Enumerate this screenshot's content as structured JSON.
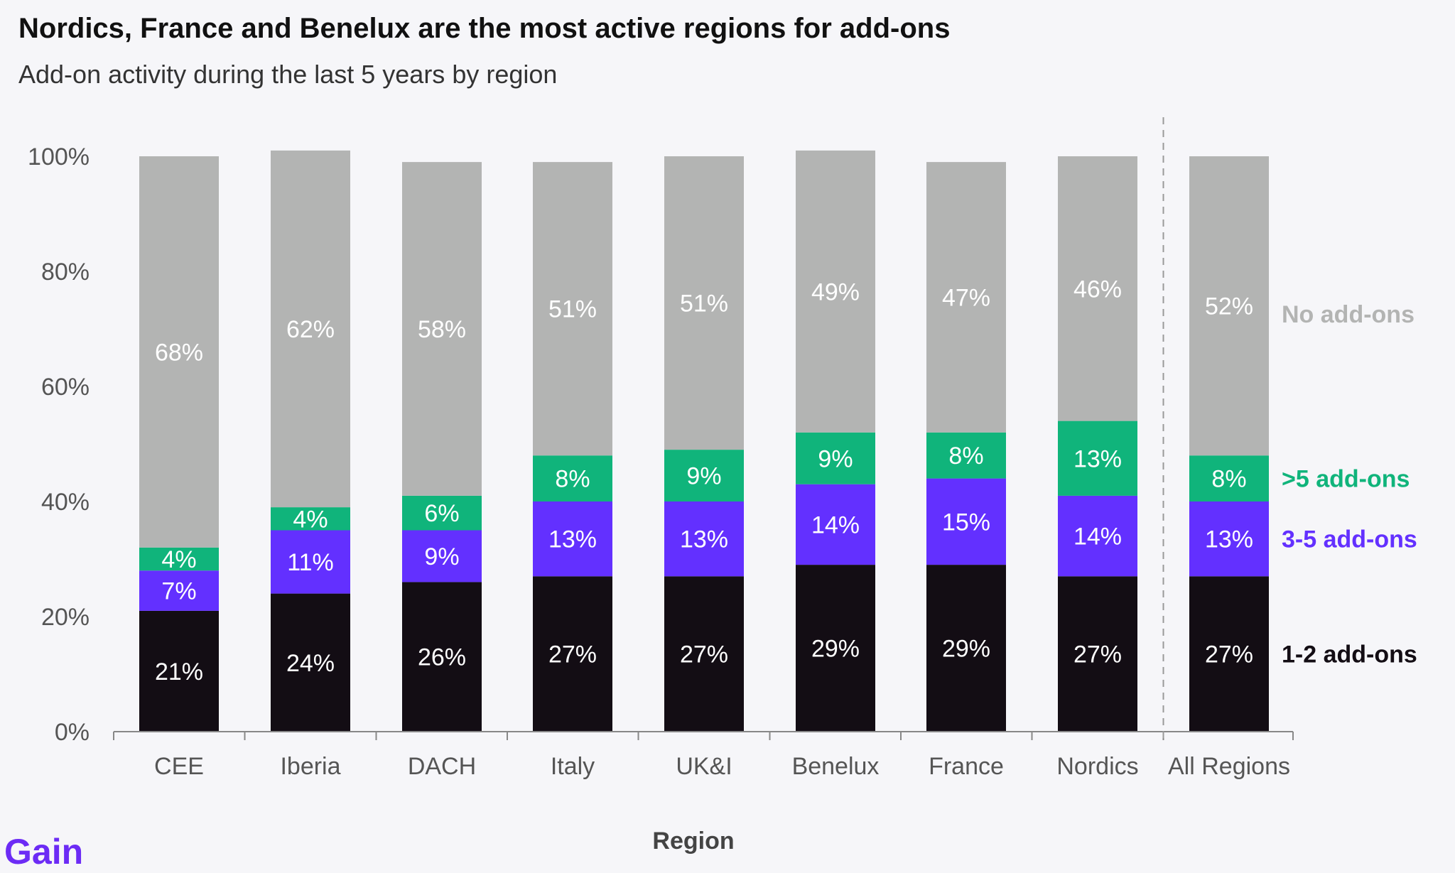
{
  "title": "Nordics, France and Benelux are the most active regions for add-ons",
  "subtitle": "Add-on activity during the last 5 years by region",
  "brand": "Gain",
  "chart_data": {
    "type": "bar",
    "stacked": true,
    "xlabel": "Region",
    "ylabel": "",
    "ylim": [
      0,
      100
    ],
    "yticks": [
      "0%",
      "20%",
      "40%",
      "60%",
      "80%",
      "100%"
    ],
    "categories": [
      "CEE",
      "Iberia",
      "DACH",
      "Italy",
      "UK&I",
      "Benelux",
      "France",
      "Nordics",
      "All Regions"
    ],
    "separator_before": "All Regions",
    "legend_placement": "right",
    "grid": false,
    "series": [
      {
        "name": "1-2 add-ons",
        "color": "#130d14",
        "values": [
          21,
          24,
          26,
          27,
          27,
          29,
          29,
          27,
          27
        ],
        "labels": [
          "21%",
          "24%",
          "26%",
          "27%",
          "27%",
          "29%",
          "29%",
          "27%",
          "27%"
        ]
      },
      {
        "name": "3-5 add-ons",
        "color": "#6330ff",
        "values": [
          7,
          11,
          9,
          13,
          13,
          14,
          15,
          14,
          13
        ],
        "labels": [
          "7%",
          "11%",
          "9%",
          "13%",
          "13%",
          "14%",
          "15%",
          "14%",
          "13%"
        ]
      },
      {
        "name": ">5 add-ons",
        "color": "#10b47b",
        "values": [
          4,
          4,
          6,
          8,
          9,
          9,
          8,
          13,
          8
        ],
        "labels": [
          "4%",
          "4%",
          "6%",
          "8%",
          "9%",
          "9%",
          "8%",
          "13%",
          "8%"
        ]
      },
      {
        "name": "No add-ons",
        "color": "#b3b4b3",
        "values": [
          68,
          62,
          58,
          51,
          51,
          49,
          47,
          46,
          52
        ],
        "labels": [
          "68%",
          "62%",
          "58%",
          "51%",
          "51%",
          "49%",
          "47%",
          "46%",
          "52%"
        ]
      }
    ],
    "legend_text_colors": [
      "#130d14",
      "#6330ff",
      "#10b47b",
      "#b3b4b3"
    ]
  }
}
